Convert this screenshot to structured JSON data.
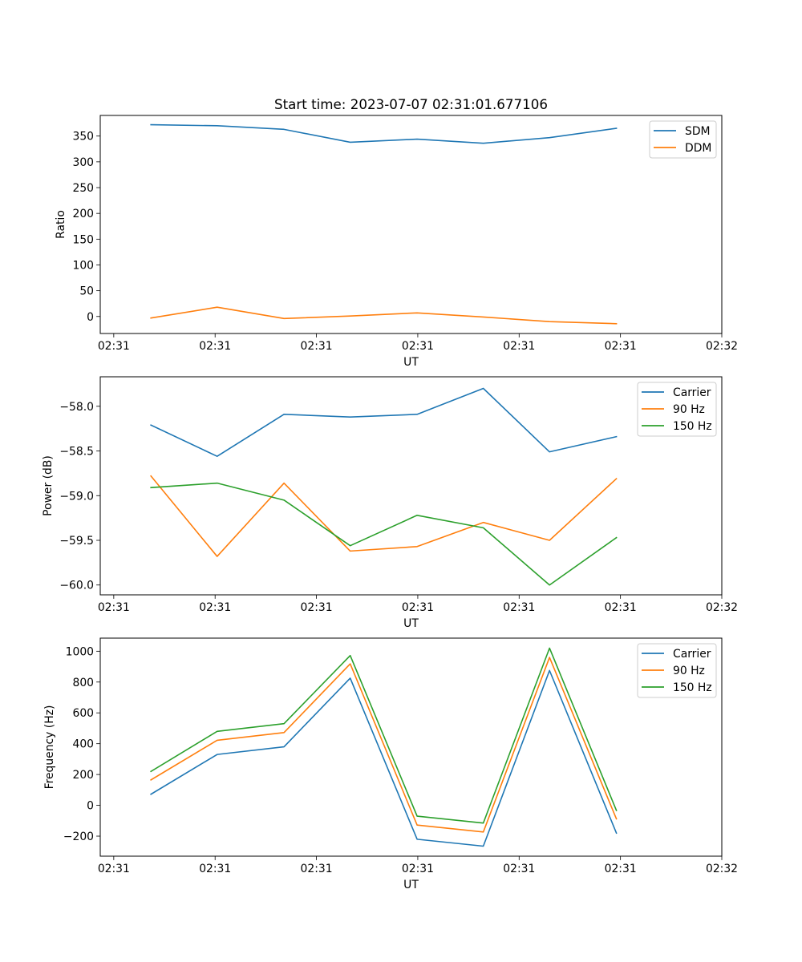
{
  "chart_data": [
    {
      "type": "line",
      "title": "Start time: 2023-07-07 02:31:01.677106",
      "xlabel": "UT",
      "ylabel": "Ratio",
      "xlim": [
        -0.5,
        8.7
      ],
      "x_ticks": [
        -0.3,
        1.2,
        2.7,
        4.2,
        5.7,
        7.2,
        8.7
      ],
      "x_tick_labels": [
        "02:31",
        "02:31",
        "02:31",
        "02:31",
        "02:31",
        "02:31",
        "02:32"
      ],
      "ylim": [
        -33,
        390
      ],
      "y_ticks": [
        0,
        50,
        100,
        150,
        200,
        250,
        300,
        350
      ],
      "y_tick_labels": [
        "0",
        "50",
        "100",
        "150",
        "200",
        "250",
        "300",
        "350"
      ],
      "x": [
        0.25,
        1.23,
        2.22,
        3.2,
        4.19,
        5.17,
        6.15,
        7.14
      ],
      "series": [
        {
          "name": "SDM",
          "color": "#1f77b4",
          "values": [
            372,
            370,
            363,
            338,
            344,
            336,
            347,
            365
          ]
        },
        {
          "name": "DDM",
          "color": "#ff7f0e",
          "values": [
            -3,
            18,
            -4,
            1,
            7,
            -1,
            -10,
            -14
          ]
        }
      ],
      "legend": "top-right"
    },
    {
      "type": "line",
      "title": "",
      "xlabel": "UT",
      "ylabel": "Power (dB)",
      "xlim": [
        -0.5,
        8.7
      ],
      "x_ticks": [
        -0.3,
        1.2,
        2.7,
        4.2,
        5.7,
        7.2,
        8.7
      ],
      "x_tick_labels": [
        "02:31",
        "02:31",
        "02:31",
        "02:31",
        "02:31",
        "02:31",
        "02:32"
      ],
      "ylim": [
        -60.11,
        -57.67
      ],
      "y_ticks": [
        -60.0,
        -59.5,
        -59.0,
        -58.5,
        -58.0
      ],
      "y_tick_labels": [
        "−60.0",
        "−59.5",
        "−59.0",
        "−58.5",
        "−58.0"
      ],
      "x": [
        0.25,
        1.23,
        2.22,
        3.2,
        4.19,
        5.17,
        6.15,
        7.14
      ],
      "series": [
        {
          "name": "Carrier",
          "color": "#1f77b4",
          "values": [
            -58.21,
            -58.56,
            -58.09,
            -58.12,
            -58.09,
            -57.8,
            -58.51,
            -58.34
          ]
        },
        {
          "name": "90 Hz",
          "color": "#ff7f0e",
          "values": [
            -58.78,
            -59.68,
            -58.86,
            -59.62,
            -59.57,
            -59.3,
            -59.5,
            -58.81
          ]
        },
        {
          "name": "150 Hz",
          "color": "#2ca02c",
          "values": [
            -58.91,
            -58.86,
            -59.05,
            -59.56,
            -59.22,
            -59.36,
            -60.0,
            -59.47
          ]
        }
      ],
      "legend": "top-right"
    },
    {
      "type": "line",
      "title": "",
      "xlabel": "UT",
      "ylabel": "Frequency (Hz)",
      "xlim": [
        -0.5,
        8.7
      ],
      "x_ticks": [
        -0.3,
        1.2,
        2.7,
        4.2,
        5.7,
        7.2,
        8.7
      ],
      "x_tick_labels": [
        "02:31",
        "02:31",
        "02:31",
        "02:31",
        "02:31",
        "02:31",
        "02:32"
      ],
      "ylim": [
        -330,
        1085
      ],
      "y_ticks": [
        -200,
        0,
        200,
        400,
        600,
        800,
        1000
      ],
      "y_tick_labels": [
        "−200",
        "0",
        "200",
        "400",
        "600",
        "800",
        "1000"
      ],
      "x": [
        0.25,
        1.23,
        2.22,
        3.2,
        4.19,
        5.17,
        6.15,
        7.14
      ],
      "series": [
        {
          "name": "Carrier",
          "color": "#1f77b4",
          "values": [
            72,
            330,
            380,
            825,
            -220,
            -265,
            875,
            -180
          ]
        },
        {
          "name": "90 Hz",
          "color": "#ff7f0e",
          "values": [
            165,
            422,
            472,
            918,
            -128,
            -173,
            960,
            -88
          ]
        },
        {
          "name": "150 Hz",
          "color": "#2ca02c",
          "values": [
            220,
            480,
            530,
            972,
            -70,
            -115,
            1020,
            -33
          ]
        }
      ],
      "legend": "top-right"
    }
  ]
}
